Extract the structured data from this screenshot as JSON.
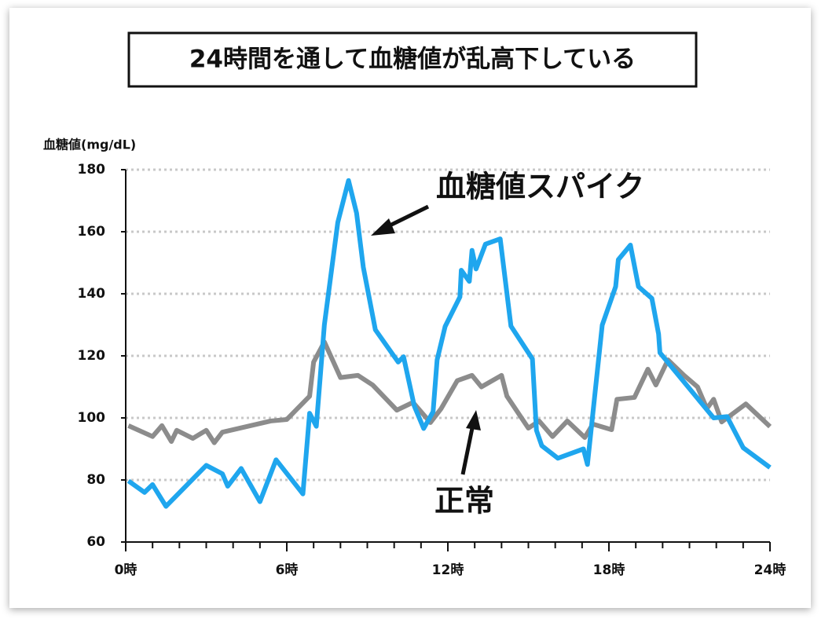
{
  "chart_data": {
    "type": "line",
    "title": "24時間を通して血糖値が乱高下している",
    "y_label": "血糖値(mg/dL)",
    "annotations": [
      {
        "text": "血糖値スパイク"
      },
      {
        "text": "正常"
      }
    ],
    "xlim": [
      0,
      24
    ],
    "xticks": [
      {
        "value": 0,
        "label": "0時"
      },
      {
        "value": 6,
        "label": "6時"
      },
      {
        "value": 12,
        "label": "12時"
      },
      {
        "value": 18,
        "label": "18時"
      },
      {
        "value": 24,
        "label": "24時"
      }
    ],
    "xminorticks": [
      0,
      1,
      2,
      3,
      4,
      5,
      6,
      7,
      8,
      9,
      10,
      11,
      12,
      13,
      14,
      15,
      16,
      17,
      18,
      19,
      20,
      21,
      22,
      23,
      24
    ],
    "ylim": [
      60,
      180
    ],
    "yticks": [
      60,
      80,
      100,
      120,
      140,
      160,
      180
    ],
    "grid": true,
    "series": [
      {
        "name": "血糖値スパイク",
        "color": "#1fa6ee",
        "x": [
          0.1,
          0.7,
          1.0,
          1.5,
          3.0,
          3.6,
          3.8,
          4.3,
          5.0,
          5.6,
          6.6,
          6.85,
          7.1,
          7.4,
          7.9,
          8.3,
          8.6,
          8.85,
          9.3,
          10.15,
          10.35,
          10.75,
          11.1,
          11.45,
          11.6,
          11.9,
          12.45,
          12.5,
          12.8,
          12.9,
          13.05,
          13.4,
          13.95,
          14.35,
          15.15,
          15.3,
          15.5,
          16.1,
          17.05,
          17.2,
          17.75,
          18.25,
          18.35,
          18.8,
          19.1,
          19.6,
          19.85,
          19.9,
          21.9,
          22.4,
          23.0,
          24.0
        ],
        "values": [
          79.7,
          76,
          78.5,
          71.5,
          84.7,
          82,
          78,
          83.7,
          73,
          86.5,
          75.5,
          101.5,
          97.3,
          130,
          163,
          176.5,
          166,
          148.6,
          128.4,
          118,
          119.7,
          103.8,
          96.6,
          102,
          118.7,
          129.5,
          139,
          147.6,
          144,
          154,
          148,
          156,
          157.7,
          129.6,
          119,
          96,
          91,
          87,
          90,
          85,
          129.9,
          142.3,
          151,
          155.7,
          142.3,
          138.5,
          127,
          121,
          100,
          100.4,
          90.4,
          84
        ]
      },
      {
        "name": "正常",
        "color": "#8c8c8c",
        "x": [
          0.1,
          1.0,
          1.35,
          1.7,
          1.9,
          2.5,
          3.0,
          3.3,
          3.6,
          5.4,
          6.0,
          6.85,
          7.0,
          7.4,
          8.0,
          8.65,
          9.2,
          10.1,
          10.7,
          11.35,
          11.75,
          12.35,
          12.9,
          13.25,
          14.0,
          14.2,
          15.0,
          15.4,
          15.9,
          16.45,
          17.1,
          17.4,
          18.1,
          18.3,
          18.95,
          19.45,
          19.75,
          20.2,
          20.8,
          21.3,
          21.65,
          21.9,
          22.2,
          23.1,
          24.0
        ],
        "values": [
          97.5,
          94,
          97.5,
          92.4,
          96,
          93.4,
          96,
          92,
          95.4,
          99,
          99.5,
          107,
          118,
          124.5,
          113,
          113.7,
          110.6,
          102.5,
          105,
          98.5,
          103,
          112,
          113.7,
          110,
          113.7,
          107,
          96.7,
          99,
          94,
          99,
          93.7,
          98,
          96.2,
          106,
          106.6,
          115.7,
          110.6,
          118.7,
          113.7,
          110,
          103,
          106,
          98.7,
          104.5,
          97.2
        ]
      }
    ]
  }
}
